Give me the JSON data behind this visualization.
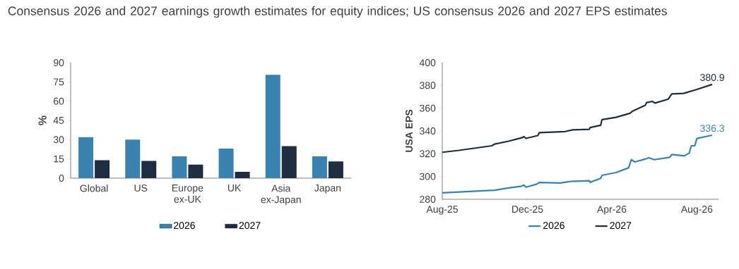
{
  "chart_data": [
    {
      "type": "bar",
      "title": "Consensus 2026 and 2027 earnings growth estimates for equity indices; US consensus 2026 and 2027 EPS estimates",
      "ylabel": "%",
      "categories": [
        "Global",
        "US",
        "Europe ex-UK",
        "UK",
        "Asia ex-Japan",
        "Japan"
      ],
      "series": [
        {
          "name": "2026",
          "color": "#3a82b0",
          "values": [
            32,
            30,
            17,
            23,
            80.5,
            17
          ]
        },
        {
          "name": "2027",
          "color": "#1f2d40",
          "values": [
            14,
            13.5,
            10.5,
            5,
            25,
            13
          ]
        }
      ],
      "ylim": [
        0,
        90
      ],
      "yticks": [
        0,
        15,
        30,
        45,
        60,
        75,
        90
      ],
      "grid": false,
      "legend": "bottom"
    },
    {
      "type": "line",
      "ylabel": "USA EPS",
      "series": [
        {
          "name": "2026",
          "color": "#3a82b0",
          "x": [
            "2025-08-01",
            "2025-08-25",
            "2025-10-15",
            "2025-11-04",
            "2025-11-23",
            "2025-11-26",
            "2025-11-29",
            "2025-12-14",
            "2025-12-18",
            "2026-01-17",
            "2026-02-01",
            "2026-02-28",
            "2026-03-01",
            "2026-03-16",
            "2026-03-18",
            "2026-04-07",
            "2026-04-25",
            "2026-04-29",
            "2026-05-04",
            "2026-05-19",
            "2026-05-24",
            "2026-06-01",
            "2026-06-23",
            "2026-06-26",
            "2026-07-14",
            "2026-07-21",
            "2026-07-24",
            "2026-07-29",
            "2026-08-01",
            "2026-08-23"
          ],
          "values": [
            285.6,
            286.4,
            288,
            290,
            291.5,
            292.5,
            290.7,
            293.2,
            294.7,
            294.3,
            295.7,
            296.3,
            294.9,
            298.4,
            301,
            303.5,
            307.6,
            314.8,
            312.8,
            315.3,
            316.5,
            314.8,
            316.9,
            319.4,
            318.1,
            320.6,
            327,
            327,
            333.4,
            336.3
          ]
        },
        {
          "name": "2027",
          "color": "#1f2d40",
          "x": [
            "2025-08-01",
            "2025-08-25",
            "2025-10-11",
            "2025-10-15",
            "2025-11-04",
            "2025-11-23",
            "2025-11-26",
            "2025-11-29",
            "2025-12-16",
            "2025-12-18",
            "2026-01-24",
            "2026-02-04",
            "2026-02-28",
            "2026-03-01",
            "2026-03-16",
            "2026-03-18",
            "2026-04-07",
            "2026-04-27",
            "2026-05-01",
            "2026-05-19",
            "2026-05-21",
            "2026-05-29",
            "2026-06-02",
            "2026-06-21",
            "2026-06-26",
            "2026-07-13",
            "2026-08-01",
            "2026-08-23"
          ],
          "values": [
            321.3,
            323,
            327,
            328.5,
            331,
            334,
            335,
            333.5,
            336,
            338.5,
            339.5,
            341,
            341.5,
            343,
            345,
            350,
            352,
            355.5,
            357.5,
            362.5,
            365,
            366,
            364.5,
            368,
            372.5,
            373,
            376.5,
            380.9
          ]
        }
      ],
      "xlim": [
        "2025-08-01",
        "2026-09-01"
      ],
      "xticks": [
        {
          "value": "2025-08-01",
          "label": "Aug-25"
        },
        {
          "value": "2025-12-01",
          "label": "Dec-25"
        },
        {
          "value": "2026-04-01",
          "label": "Apr-26"
        },
        {
          "value": "2026-08-01",
          "label": "Aug-26"
        }
      ],
      "ylim": [
        280,
        400
      ],
      "yticks": [
        280,
        300,
        320,
        340,
        360,
        380,
        400
      ],
      "annotations": [
        {
          "text": "336.3",
          "x": "2026-08-23",
          "y": 336.3
        },
        {
          "text": "380.9",
          "x": "2026-08-23",
          "y": 380.9
        }
      ],
      "grid": false,
      "legend": "bottom",
      "marker": "none",
      "line_style": "solid"
    }
  ]
}
